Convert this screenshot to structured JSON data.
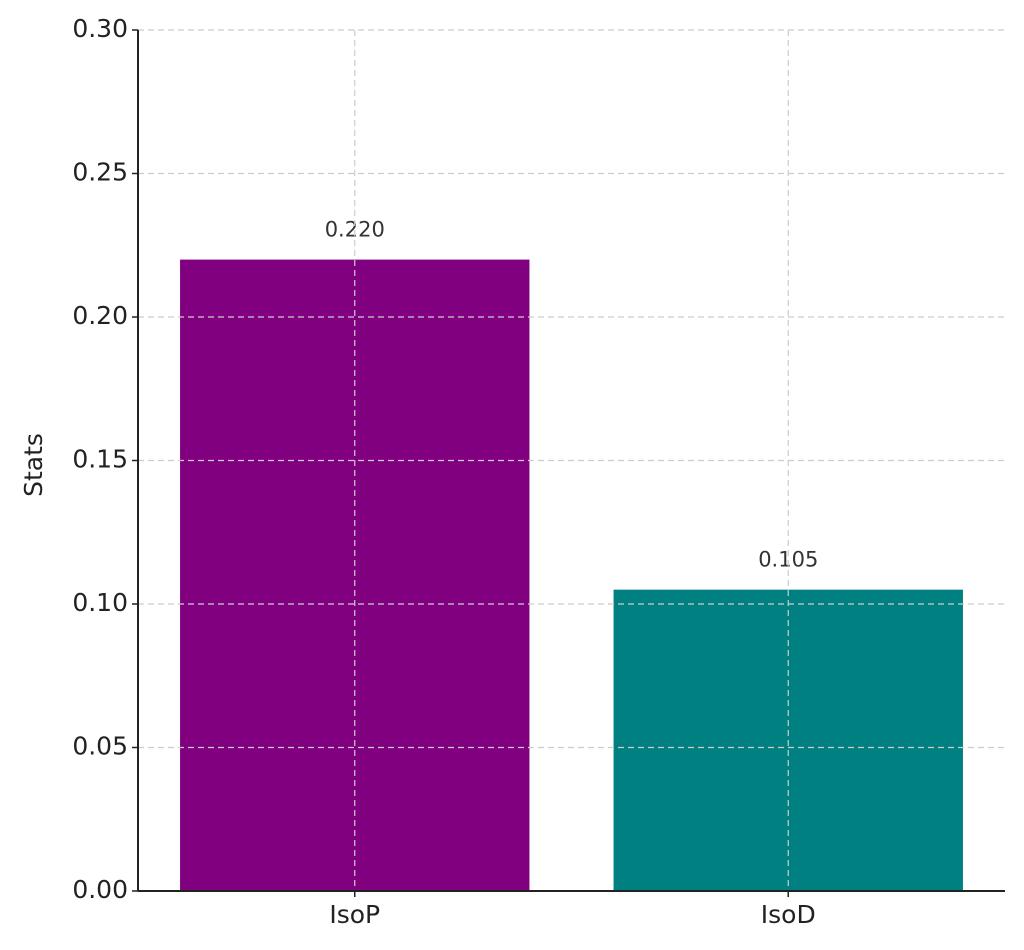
{
  "chart_data": {
    "type": "bar",
    "y_label": "Stats",
    "categories": [
      "IsoP",
      "IsoD"
    ],
    "values": [
      0.22,
      0.105
    ],
    "value_labels": [
      "0.220",
      "0.105"
    ],
    "colors": [
      "#800080",
      "#008080"
    ],
    "ylim": [
      0,
      0.3
    ],
    "yticks": [
      {
        "value": 0,
        "label": "0.00"
      },
      {
        "value": 0.05,
        "label": "0.05"
      },
      {
        "value": 0.1,
        "label": "0.10"
      },
      {
        "value": 0.15,
        "label": "0.15"
      },
      {
        "value": 0.2,
        "label": "0.20"
      },
      {
        "value": 0.25,
        "label": "0.25"
      },
      {
        "value": 0.3,
        "label": "0.30"
      }
    ],
    "grid": true
  }
}
